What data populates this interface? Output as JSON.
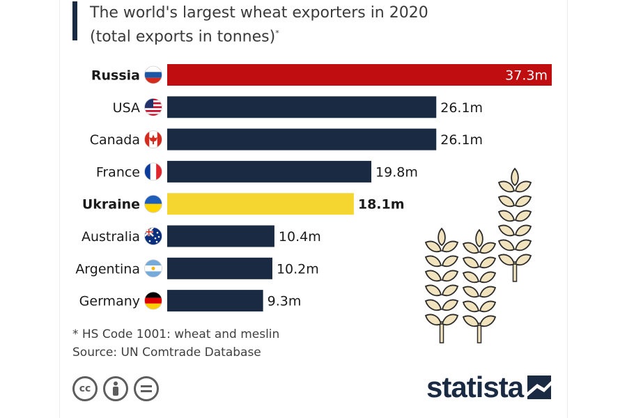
{
  "header": {
    "title_line1": "The world's largest wheat exporters in 2020",
    "title_line2": "(total exports in tonnes)",
    "title_mark": "*"
  },
  "colors": {
    "bar_default": "#1b2a43",
    "bar_russia": "#c00d10",
    "bar_ukraine": "#f5d630",
    "text": "#1a1a1a",
    "wheat_fill": "#f2e3bf",
    "wheat_stroke": "#2b2b2b"
  },
  "chart_data": {
    "type": "bar",
    "orientation": "horizontal",
    "categories": [
      "Russia",
      "USA",
      "Canada",
      "France",
      "Ukraine",
      "Australia",
      "Argentina",
      "Germany"
    ],
    "values": [
      37.3,
      26.1,
      26.1,
      19.8,
      18.1,
      10.4,
      10.2,
      9.3
    ],
    "value_labels": [
      "37.3m",
      "26.1m",
      "26.1m",
      "19.8m",
      "18.1m",
      "10.4m",
      "10.2m",
      "9.3m"
    ],
    "highlight": {
      "Russia": "#c00d10",
      "Ukraine": "#f5d630"
    },
    "bold_categories": [
      "Russia",
      "Ukraine"
    ],
    "flags": [
      "russia-flag-icon",
      "usa-flag-icon",
      "canada-flag-icon",
      "france-flag-icon",
      "ukraine-flag-icon",
      "australia-flag-icon",
      "argentina-flag-icon",
      "germany-flag-icon"
    ],
    "units": "million tonnes",
    "xlim": [
      0,
      37.3
    ],
    "grid": false
  },
  "footnote": {
    "note": "* HS Code 1001: wheat and meslin",
    "source": "Source: UN Comtrade Database"
  },
  "license_icons": [
    "cc-icon",
    "attribution-icon",
    "no-derivatives-icon"
  ],
  "brand": {
    "name": "statista",
    "icon": "statista-logo-icon"
  }
}
